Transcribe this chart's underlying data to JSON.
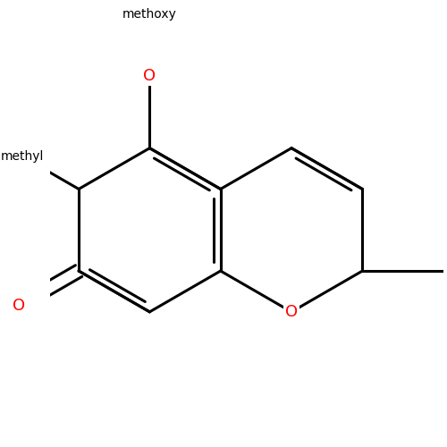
{
  "background_color": "#ffffff",
  "bond_color": "#000000",
  "oxygen_color": "#ff0000",
  "bond_width": 2.2,
  "figsize": [
    5.0,
    5.0
  ],
  "dpi": 100,
  "xlim": [
    -2.8,
    3.2
  ],
  "ylim": [
    -2.5,
    2.5
  ],
  "scale": 1.25,
  "shift_x": -0.2,
  "shift_y": 0.15,
  "methoxy_label": "methoxy",
  "methyl_label": "methyl"
}
